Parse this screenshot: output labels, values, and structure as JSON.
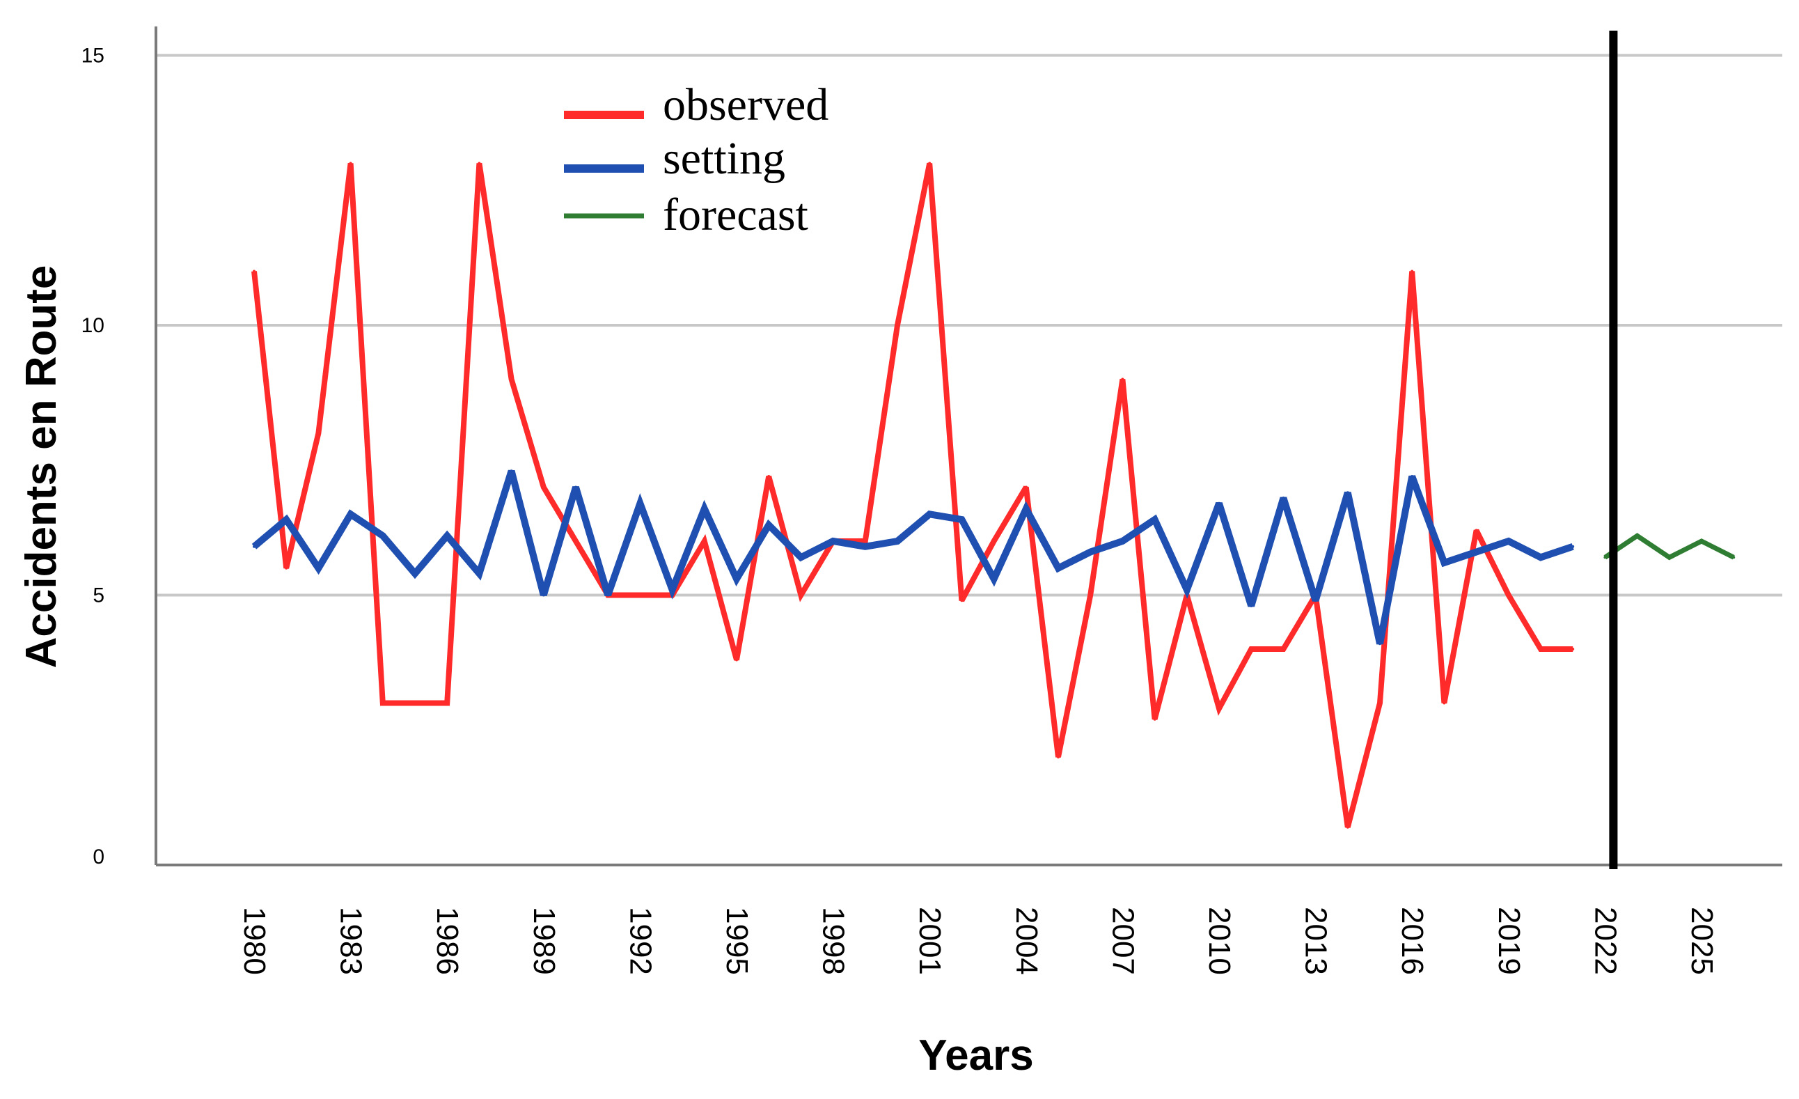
{
  "chart_data": {
    "type": "line",
    "title": "",
    "xlabel": "Years",
    "ylabel": "Accidents en Route",
    "ylim": [
      0,
      15
    ],
    "yticks": [
      "0",
      "5",
      "10",
      "15"
    ],
    "xticks": [
      "1980",
      "1983",
      "1986",
      "1989",
      "1992",
      "1995",
      "1998",
      "2001",
      "2004",
      "2007",
      "2010",
      "2013",
      "2016",
      "2019",
      "2022",
      "2025"
    ],
    "grid": "horizontal",
    "legend_position": "top-left",
    "forecast_divider_year": 2022,
    "series": [
      {
        "name": "observed",
        "color": "#ff2a2a",
        "x": [
          1980,
          1981,
          1982,
          1983,
          1984,
          1985,
          1986,
          1987,
          1988,
          1989,
          1990,
          1991,
          1992,
          1993,
          1994,
          1995,
          1996,
          1997,
          1998,
          1999,
          2000,
          2001,
          2002,
          2003,
          2004,
          2005,
          2006,
          2007,
          2008,
          2009,
          2010,
          2011,
          2012,
          2013,
          2014,
          2015,
          2016,
          2017,
          2018,
          2019,
          2020,
          2021
        ],
        "values": [
          11,
          5.5,
          8,
          13,
          3,
          3,
          3,
          13,
          9,
          7,
          6,
          5,
          5,
          5,
          6,
          3.8,
          7.2,
          5,
          6,
          6,
          10,
          13,
          4.9,
          6,
          7,
          2,
          5,
          9,
          2.7,
          5,
          2.9,
          4,
          4,
          5,
          0.7,
          3,
          11,
          3,
          6.2,
          5,
          4,
          4
        ]
      },
      {
        "name": "setting",
        "color": "#1f4fb0",
        "x": [
          1980,
          1981,
          1982,
          1983,
          1984,
          1985,
          1986,
          1987,
          1988,
          1989,
          1990,
          1991,
          1992,
          1993,
          1994,
          1995,
          1996,
          1997,
          1998,
          1999,
          2000,
          2001,
          2002,
          2003,
          2004,
          2005,
          2006,
          2007,
          2008,
          2009,
          2010,
          2011,
          2012,
          2013,
          2014,
          2015,
          2016,
          2017,
          2018,
          2019,
          2020,
          2021
        ],
        "values": [
          5.9,
          6.4,
          5.5,
          6.5,
          6.1,
          5.4,
          6.1,
          5.4,
          7.3,
          5,
          7,
          5,
          6.7,
          5.1,
          6.6,
          5.3,
          6.3,
          5.7,
          6,
          5.9,
          6,
          6.5,
          6.4,
          5.3,
          6.6,
          5.5,
          5.8,
          6,
          6.4,
          5.1,
          6.7,
          4.8,
          6.8,
          4.9,
          6.9,
          4.1,
          7.2,
          5.6,
          5.8,
          6,
          5.7,
          5.9
        ]
      },
      {
        "name": "forecast",
        "color": "#2e7d32",
        "x": [
          2022,
          2023,
          2024,
          2025,
          2026
        ],
        "values": [
          5.7,
          6.1,
          5.7,
          6.0,
          5.7
        ]
      }
    ]
  }
}
